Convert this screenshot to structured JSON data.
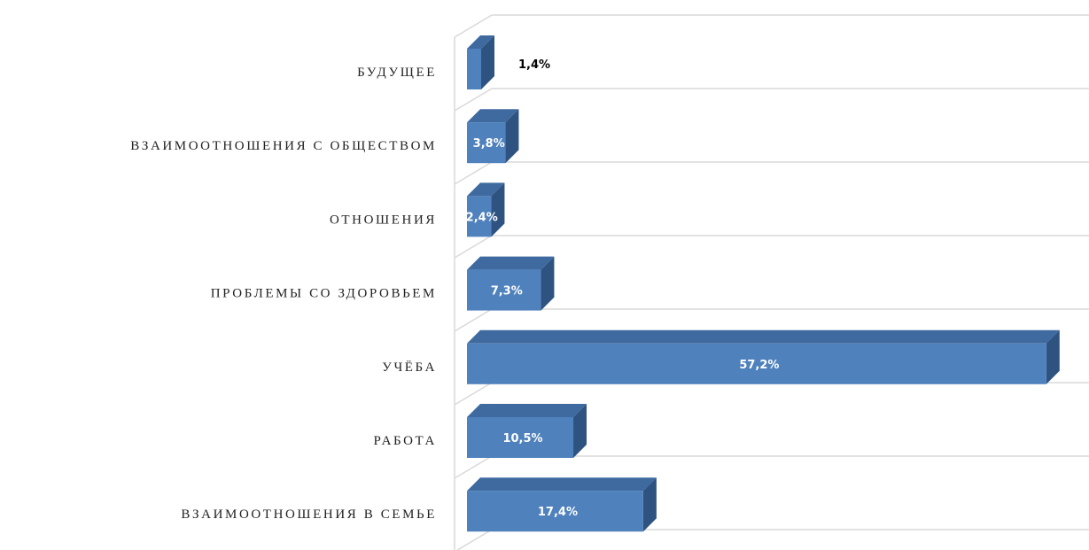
{
  "chart_data": {
    "type": "bar3d_horizontal",
    "categories": [
      "БУДУЩЕЕ",
      "ВЗАИМООТНОШЕНИЯ С ОБЩЕСТВОМ",
      "ОТНОШЕНИЯ",
      "ПРОБЛЕМЫ СО ЗДОРОВЬЕМ",
      "УЧЁБА",
      "РАБОТА",
      "ВЗАИМООТНОШЕНИЯ В СЕМЬЕ"
    ],
    "values": [
      1.4,
      3.8,
      2.4,
      7.3,
      57.2,
      10.5,
      17.4
    ],
    "value_labels": [
      "1,4%",
      "3,8%",
      "2,4%",
      "7,3%",
      "57,2%",
      "10,5%",
      "17,4%"
    ],
    "color": "#4f81bd",
    "grid": true
  }
}
